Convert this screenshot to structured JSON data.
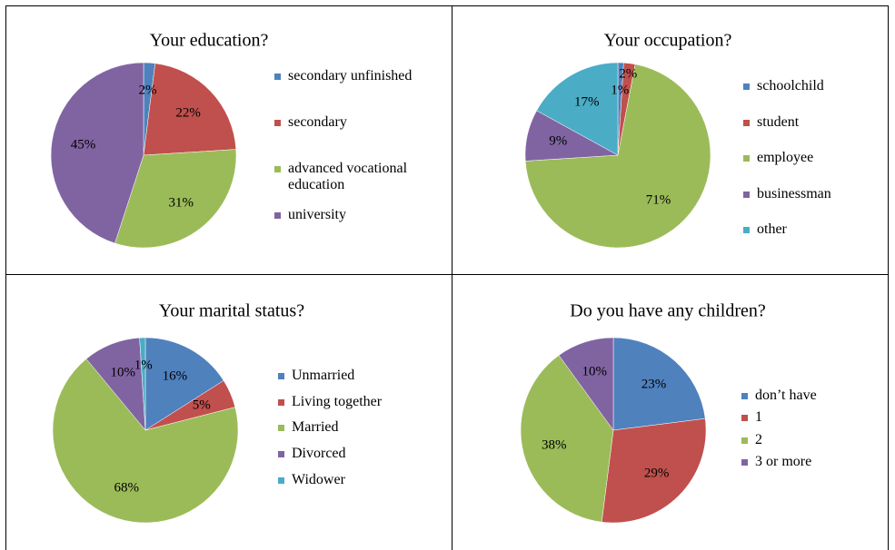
{
  "chart_data": [
    {
      "type": "pie",
      "title": "Your education?",
      "categories": [
        "secondary unfinished",
        "secondary",
        "advanced vocational education",
        "university"
      ],
      "values": [
        2,
        22,
        31,
        45
      ],
      "value_labels": [
        "2%",
        "22%",
        "31%",
        "45%"
      ],
      "colors": [
        "#4f81bd",
        "#c0504d",
        "#9bbb59",
        "#8064a2"
      ]
    },
    {
      "type": "pie",
      "title": "Your occupation?",
      "categories": [
        "schoolchild",
        "student",
        "employee",
        "businessman",
        "other"
      ],
      "values": [
        1,
        2,
        71,
        9,
        17
      ],
      "value_labels": [
        "1%",
        "2%",
        "71%",
        "9%",
        "17%"
      ],
      "colors": [
        "#4f81bd",
        "#c0504d",
        "#9bbb59",
        "#8064a2",
        "#4bacc6"
      ]
    },
    {
      "type": "pie",
      "title": "Your marital status?",
      "categories": [
        "Unmarried",
        "Living together",
        "Married",
        "Divorced",
        "Widower"
      ],
      "values": [
        16,
        5,
        68,
        10,
        1
      ],
      "value_labels": [
        "16%",
        "5%",
        "68%",
        "10%",
        "1%"
      ],
      "colors": [
        "#4f81bd",
        "#c0504d",
        "#9bbb59",
        "#8064a2",
        "#4bacc6"
      ]
    },
    {
      "type": "pie",
      "title": "Do you have any children?",
      "categories": [
        "don’t have",
        "1",
        "2",
        "3 or more"
      ],
      "values": [
        23,
        29,
        38,
        10
      ],
      "value_labels": [
        "23%",
        "29%",
        "38%",
        "10%"
      ],
      "colors": [
        "#4f81bd",
        "#c0504d",
        "#9bbb59",
        "#8064a2"
      ]
    }
  ]
}
